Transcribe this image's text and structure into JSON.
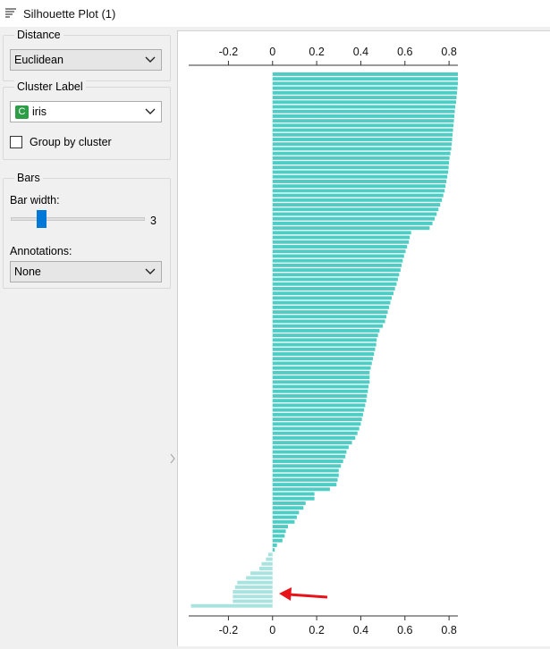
{
  "window": {
    "title": "Silhouette Plot (1)"
  },
  "sidebar": {
    "distance": {
      "group_title": "Distance",
      "selected": "Euclidean"
    },
    "cluster_label": {
      "group_title": "Cluster Label",
      "badge": "C",
      "selected": "iris",
      "group_by_label": "Group by cluster",
      "group_by_checked": false
    },
    "bars": {
      "group_title": "Bars",
      "bar_width_label": "Bar width:",
      "bar_width_value": "3",
      "annotations_label": "Annotations:",
      "annotations_selected": "None"
    }
  },
  "colors": {
    "bar": "#4ecdc4",
    "bar_negative": "#a8e3df",
    "arrow": "#e8121a",
    "slider": "#0078d7",
    "badge": "#2e9d47"
  },
  "icons": {
    "app": "silhouette-plot-icon",
    "chevron": "chevron-down-icon",
    "arrow": "red-arrow-annotation"
  },
  "chart_data": {
    "type": "bar",
    "orientation": "horizontal",
    "xlim": [
      -0.38,
      0.84
    ],
    "tick_values": [
      -0.2,
      0,
      0.2,
      0.4,
      0.6,
      0.8
    ],
    "tick_labels": [
      "-0.2",
      "0",
      "0.2",
      "0.4",
      "0.6",
      "0.8"
    ],
    "grid": false,
    "values": [
      0.84,
      0.84,
      0.84,
      0.838,
      0.836,
      0.834,
      0.832,
      0.828,
      0.826,
      0.824,
      0.822,
      0.82,
      0.818,
      0.816,
      0.814,
      0.812,
      0.81,
      0.806,
      0.802,
      0.8,
      0.798,
      0.796,
      0.792,
      0.788,
      0.784,
      0.78,
      0.774,
      0.768,
      0.76,
      0.752,
      0.744,
      0.735,
      0.725,
      0.712,
      0.628,
      0.622,
      0.618,
      0.61,
      0.603,
      0.596,
      0.59,
      0.585,
      0.58,
      0.574,
      0.568,
      0.562,
      0.555,
      0.548,
      0.54,
      0.534,
      0.528,
      0.522,
      0.516,
      0.51,
      0.5,
      0.485,
      0.478,
      0.472,
      0.47,
      0.465,
      0.46,
      0.455,
      0.45,
      0.445,
      0.44,
      0.44,
      0.44,
      0.435,
      0.432,
      0.428,
      0.425,
      0.42,
      0.415,
      0.41,
      0.405,
      0.4,
      0.393,
      0.385,
      0.375,
      0.36,
      0.345,
      0.335,
      0.33,
      0.32,
      0.31,
      0.3,
      0.3,
      0.295,
      0.29,
      0.26,
      0.19,
      0.19,
      0.15,
      0.14,
      0.12,
      0.11,
      0.1,
      0.07,
      0.06,
      0.055,
      0.045,
      0.02,
      0.01,
      -0.02,
      -0.03,
      -0.05,
      -0.06,
      -0.1,
      -0.12,
      -0.16,
      -0.17,
      -0.18,
      -0.18,
      -0.18,
      -0.37
    ]
  }
}
